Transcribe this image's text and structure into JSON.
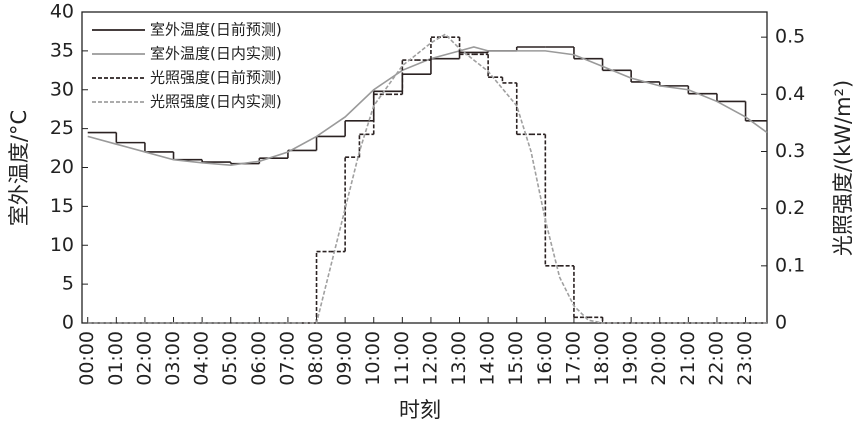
{
  "chart_data": {
    "type": "line",
    "xlabel": "时刻",
    "ylabel": "室外温度/°C",
    "y2label": "光照强度/(kW/m²)",
    "xlim": [
      -0.2,
      23.75
    ],
    "ylim": [
      0,
      40
    ],
    "y2lim": [
      0,
      0.544
    ],
    "yticks": [
      0,
      5,
      10,
      15,
      20,
      25,
      30,
      35,
      40
    ],
    "y2ticks": [
      0,
      0.1,
      0.2,
      0.3,
      0.4,
      0.5
    ],
    "xticks": [
      {
        "value": 0,
        "label": "00:00"
      },
      {
        "value": 1,
        "label": "01:00"
      },
      {
        "value": 2,
        "label": "02:00"
      },
      {
        "value": 3,
        "label": "03:00"
      },
      {
        "value": 4,
        "label": "04:00"
      },
      {
        "value": 5,
        "label": "05:00"
      },
      {
        "value": 6,
        "label": "06:00"
      },
      {
        "value": 7,
        "label": "07:00"
      },
      {
        "value": 8,
        "label": "08:00"
      },
      {
        "value": 9,
        "label": "09:00"
      },
      {
        "value": 10,
        "label": "10:00"
      },
      {
        "value": 11,
        "label": "11:00"
      },
      {
        "value": 12,
        "label": "12:00"
      },
      {
        "value": 13,
        "label": "13:00"
      },
      {
        "value": 14,
        "label": "14:00"
      },
      {
        "value": 15,
        "label": "15:00"
      },
      {
        "value": 16,
        "label": "16:00"
      },
      {
        "value": 17,
        "label": "17:00"
      },
      {
        "value": 18,
        "label": "18:00"
      },
      {
        "value": 19,
        "label": "19:00"
      },
      {
        "value": 20,
        "label": "20:00"
      },
      {
        "value": 21,
        "label": "21:00"
      },
      {
        "value": 22,
        "label": "22:00"
      },
      {
        "value": 23,
        "label": "23:00"
      }
    ],
    "series": [
      {
        "name": "室外温度(日前预测)",
        "color": "#2b2222",
        "dash": false,
        "step": true,
        "axis": "y",
        "x": [
          0,
          1,
          2,
          3,
          4,
          5,
          6,
          7,
          8,
          9,
          10,
          11,
          12,
          13,
          14,
          15,
          16,
          17,
          18,
          19,
          20,
          21,
          22,
          23
        ],
        "values": [
          24.5,
          23.2,
          22,
          21,
          20.7,
          20.5,
          21.2,
          22.2,
          24,
          26,
          29.8,
          32,
          34,
          34.8,
          35,
          35.5,
          35.5,
          34,
          32.5,
          31,
          30.5,
          29.5,
          28.5,
          26
        ]
      },
      {
        "name": "室外温度(日内实测)",
        "color": "#9a9a9a",
        "dash": false,
        "step": false,
        "axis": "y",
        "x": [
          0,
          1,
          2,
          3,
          4,
          5,
          6,
          7,
          8,
          9,
          10,
          11,
          12,
          13,
          13.5,
          14,
          15,
          16,
          17,
          18,
          19,
          20,
          21,
          22,
          23,
          23.75
        ],
        "values": [
          24,
          23,
          22,
          21,
          20.6,
          20.3,
          20.8,
          22,
          24,
          26.5,
          30,
          32.5,
          34,
          35,
          35.5,
          35,
          35,
          35,
          34.5,
          33,
          31.5,
          30.5,
          30,
          28.5,
          26.5,
          24.5
        ]
      },
      {
        "name": "光照强度(日前预测)",
        "color": "#2b2222",
        "dash": true,
        "step": true,
        "axis": "y2",
        "x": [
          0,
          7.5,
          8,
          8.5,
          9,
          9.5,
          10,
          10.5,
          11,
          11.5,
          12,
          12.5,
          13,
          13.5,
          14,
          14.5,
          15,
          15.5,
          16,
          16.5,
          17,
          17.5,
          18
        ],
        "values": [
          0,
          0,
          0.125,
          0.125,
          0.29,
          0.33,
          0.4,
          0.4,
          0.46,
          0.46,
          0.5,
          0.5,
          0.47,
          0.47,
          0.43,
          0.42,
          0.33,
          0.33,
          0.1,
          0.1,
          0.01,
          0.01,
          0
        ]
      },
      {
        "name": "光照强度(日内实测)",
        "color": "#a0a0a0",
        "dash": true,
        "step": false,
        "axis": "y2",
        "x": [
          0,
          8,
          8.5,
          9,
          9.5,
          10,
          11,
          12,
          12.5,
          13,
          14,
          15,
          15.5,
          16,
          16.5,
          17,
          17.5,
          18,
          23.75
        ],
        "values": [
          0,
          0,
          0.1,
          0.2,
          0.3,
          0.38,
          0.45,
          0.49,
          0.505,
          0.48,
          0.44,
          0.38,
          0.3,
          0.18,
          0.08,
          0.03,
          0.005,
          0,
          0
        ]
      }
    ]
  }
}
